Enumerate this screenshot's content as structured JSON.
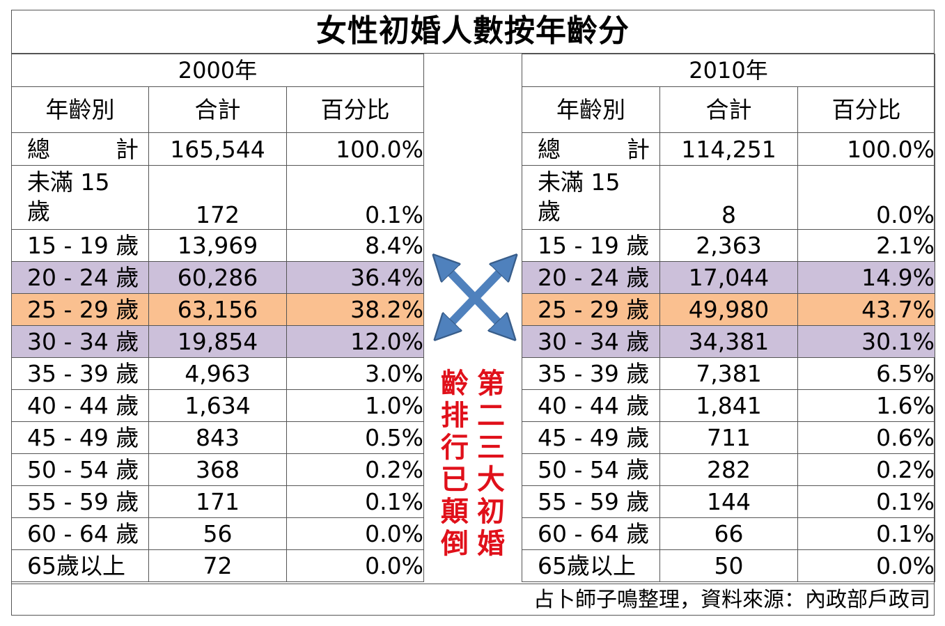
{
  "title": "女性初婚人數按年齡分",
  "header": {
    "age": "年齡別",
    "total": "合計",
    "pct": "百分比"
  },
  "left": {
    "year": "2000年",
    "total_row": {
      "age": "總計",
      "total": "165,544",
      "pct": "100.0%"
    },
    "minor_row": {
      "age_line1": "未滿 15",
      "age_line2": "歲",
      "total": "172",
      "pct": "0.1%"
    },
    "rows": [
      {
        "age": "15 - 19 歲",
        "total": "13,969",
        "pct": "8.4%"
      },
      {
        "age": "20 - 24 歲",
        "total": "60,286",
        "pct": "36.4%"
      },
      {
        "age": "25 - 29 歲",
        "total": "63,156",
        "pct": "38.2%"
      },
      {
        "age": "30 - 34 歲",
        "total": "19,854",
        "pct": "12.0%"
      },
      {
        "age": "35 - 39 歲",
        "total": "4,963",
        "pct": "3.0%"
      },
      {
        "age": "40 - 44 歲",
        "total": "1,634",
        "pct": "1.0%"
      },
      {
        "age": "45 - 49 歲",
        "total": "843",
        "pct": "0.5%"
      },
      {
        "age": "50 - 54 歲",
        "total": "368",
        "pct": "0.2%"
      },
      {
        "age": "55 - 59 歲",
        "total": "171",
        "pct": "0.1%"
      },
      {
        "age": "60 - 64 歲",
        "total": "56",
        "pct": "0.0%"
      },
      {
        "age": "65歲以上",
        "total": "72",
        "pct": "0.0%"
      }
    ]
  },
  "right": {
    "year": "2010年",
    "total_row": {
      "age": "總計",
      "total": "114,251",
      "pct": "100.0%"
    },
    "minor_row": {
      "age_line1": "未滿 15",
      "age_line2": "歲",
      "total": "8",
      "pct": "0.0%"
    },
    "rows": [
      {
        "age": "15 - 19 歲",
        "total": "2,363",
        "pct": "2.1%"
      },
      {
        "age": "20 - 24 歲",
        "total": "17,044",
        "pct": "14.9%"
      },
      {
        "age": "25 - 29 歲",
        "total": "49,980",
        "pct": "43.7%"
      },
      {
        "age": "30 - 34 歲",
        "total": "34,381",
        "pct": "30.1%"
      },
      {
        "age": "35 - 39 歲",
        "total": "7,381",
        "pct": "6.5%"
      },
      {
        "age": "40 - 44 歲",
        "total": "1,841",
        "pct": "1.6%"
      },
      {
        "age": "45 - 49 歲",
        "total": "711",
        "pct": "0.6%"
      },
      {
        "age": "50 - 54 歲",
        "total": "282",
        "pct": "0.2%"
      },
      {
        "age": "55 - 59 歲",
        "total": "144",
        "pct": "0.1%"
      },
      {
        "age": "60 - 64 歲",
        "total": "66",
        "pct": "0.1%"
      },
      {
        "age": "65歲以上",
        "total": "50",
        "pct": "0.0%"
      }
    ]
  },
  "annotation": {
    "col1": "第二三大初婚",
    "col2": "齡排行已顛倒"
  },
  "footer": "占卜師子鳴整理，資料來源：內政部戶政司",
  "colors": {
    "purple_row": "#ccc0da",
    "orange_row": "#fac090",
    "annotation": "#e0101a",
    "arrow": "#4f81bd"
  },
  "icons": {
    "arrows": "four-way-cross-arrows-icon"
  }
}
